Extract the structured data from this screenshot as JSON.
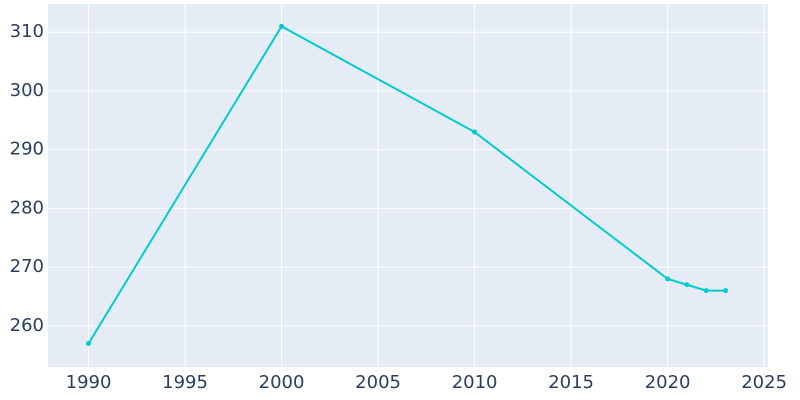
{
  "chart_data": {
    "type": "line",
    "x": [
      1990,
      2000,
      2010,
      2020,
      2021,
      2022,
      2023
    ],
    "values": [
      257,
      311,
      293,
      268,
      267,
      266,
      266
    ],
    "color": "#00cccc",
    "xlim": [
      1987.9,
      2025.2
    ],
    "xticks": [
      1990,
      1995,
      2000,
      2005,
      2010,
      2015,
      2020,
      2025
    ],
    "ylim": [
      253.0,
      314.8
    ],
    "yticks": [
      260,
      270,
      280,
      290,
      300,
      310
    ],
    "grid": true
  }
}
